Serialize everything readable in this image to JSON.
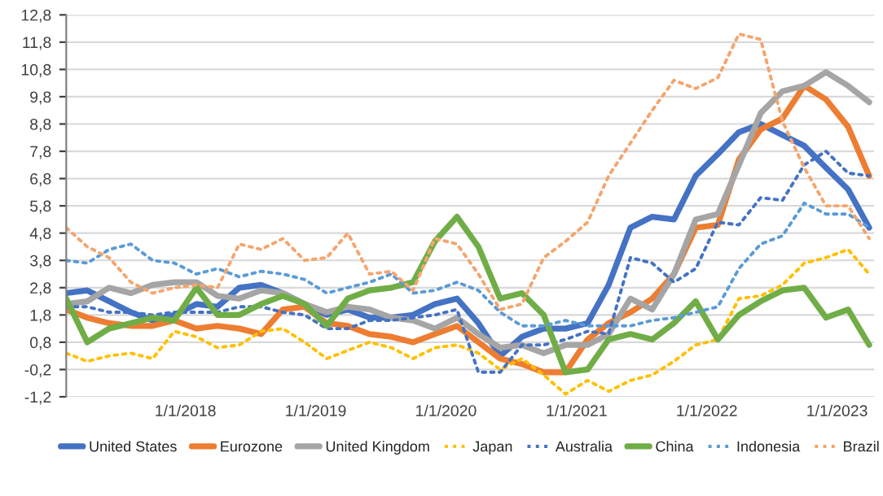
{
  "chart_data": {
    "type": "line",
    "x": [
      "2017-02",
      "2017-04",
      "2017-06",
      "2017-08",
      "2017-10",
      "2017-12",
      "2018-02",
      "2018-04",
      "2018-06",
      "2018-08",
      "2018-10",
      "2018-12",
      "2019-02",
      "2019-04",
      "2019-06",
      "2019-08",
      "2019-10",
      "2019-12",
      "2020-02",
      "2020-04",
      "2020-06",
      "2020-08",
      "2020-10",
      "2020-12",
      "2021-02",
      "2021-04",
      "2021-06",
      "2021-08",
      "2021-10",
      "2021-12",
      "2022-02",
      "2022-04",
      "2022-06",
      "2022-08",
      "2022-10",
      "2022-12",
      "2023-02",
      "2023-04"
    ],
    "series": [
      {
        "name": "United States",
        "color": "#4472c4",
        "line_style": "solid",
        "values": [
          2.6,
          2.7,
          2.3,
          1.9,
          1.6,
          1.8,
          2.2,
          2.1,
          2.8,
          2.9,
          2.6,
          2.2,
          1.8,
          2.0,
          1.7,
          1.7,
          1.8,
          2.2,
          2.4,
          1.5,
          0.3,
          1.0,
          1.3,
          1.3,
          1.5,
          2.9,
          5.0,
          5.4,
          5.3,
          6.9,
          7.7,
          8.5,
          8.8,
          8.4,
          8.0,
          7.2,
          6.4,
          5.0
        ]
      },
      {
        "name": "Eurozone",
        "color": "#ed7d31",
        "line_style": "solid",
        "values": [
          2.0,
          1.7,
          1.5,
          1.4,
          1.4,
          1.6,
          1.3,
          1.4,
          1.3,
          1.1,
          2.0,
          2.1,
          1.5,
          1.4,
          1.1,
          1.0,
          0.8,
          1.1,
          1.4,
          0.8,
          0.2,
          0.0,
          -0.3,
          -0.3,
          0.9,
          1.5,
          1.9,
          2.4,
          3.3,
          5.0,
          5.1,
          7.5,
          8.6,
          9.0,
          10.2,
          9.7,
          8.7,
          6.9
        ]
      },
      {
        "name": "United Kingdom",
        "color": "#a5a5a5",
        "line_style": "solid",
        "values": [
          2.2,
          2.3,
          2.8,
          2.6,
          2.9,
          3.0,
          3.0,
          2.5,
          2.4,
          2.7,
          2.6,
          2.2,
          1.9,
          2.1,
          2.0,
          1.7,
          1.6,
          1.3,
          1.7,
          1.1,
          0.6,
          0.7,
          0.4,
          0.7,
          0.7,
          1.1,
          2.4,
          2.0,
          3.3,
          5.3,
          5.5,
          7.3,
          9.2,
          10.0,
          10.2,
          10.7,
          10.2,
          9.6
        ]
      },
      {
        "name": "Japan",
        "color": "#ffc000",
        "line_style": "dotted",
        "values": [
          0.4,
          0.1,
          0.3,
          0.4,
          0.2,
          1.2,
          1.0,
          0.6,
          0.7,
          1.2,
          1.3,
          0.8,
          0.2,
          0.5,
          0.8,
          0.6,
          0.2,
          0.6,
          0.7,
          0.4,
          -0.2,
          0.2,
          -0.4,
          -1.1,
          -0.6,
          -1.0,
          -0.6,
          -0.4,
          0.1,
          0.7,
          0.9,
          2.4,
          2.5,
          2.9,
          3.7,
          3.9,
          4.2,
          3.3
        ]
      },
      {
        "name": "Australia",
        "color": "#4472c4",
        "line_style": "dotted",
        "values": [
          2.1,
          2.1,
          1.9,
          1.9,
          1.8,
          1.9,
          1.9,
          1.9,
          2.1,
          2.1,
          1.9,
          1.8,
          1.3,
          1.3,
          1.6,
          1.6,
          1.7,
          1.8,
          2.0,
          -0.3,
          -0.3,
          0.7,
          0.7,
          0.9,
          1.2,
          1.1,
          3.9,
          3.7,
          3.0,
          3.5,
          5.2,
          5.1,
          6.1,
          6.0,
          7.3,
          7.8,
          7.0,
          6.9
        ]
      },
      {
        "name": "China",
        "color": "#70ad47",
        "line_style": "solid",
        "values": [
          2.4,
          0.8,
          1.3,
          1.5,
          1.7,
          1.6,
          2.8,
          1.8,
          1.8,
          2.2,
          2.5,
          2.2,
          1.4,
          2.4,
          2.7,
          2.8,
          3.0,
          4.5,
          5.4,
          4.3,
          2.4,
          2.6,
          1.8,
          -0.3,
          -0.2,
          0.9,
          1.1,
          0.9,
          1.5,
          2.3,
          0.9,
          1.8,
          2.3,
          2.7,
          2.8,
          1.7,
          2.0,
          0.7
        ]
      },
      {
        "name": "Indonesia",
        "color": "#5b9bd5",
        "line_style": "dotted",
        "values": [
          3.8,
          3.7,
          4.2,
          4.4,
          3.8,
          3.7,
          3.3,
          3.5,
          3.2,
          3.4,
          3.3,
          3.1,
          2.6,
          2.8,
          3.0,
          3.3,
          2.6,
          2.7,
          3.0,
          2.7,
          1.9,
          1.4,
          1.4,
          1.6,
          1.4,
          1.4,
          1.4,
          1.6,
          1.7,
          1.9,
          2.1,
          3.5,
          4.4,
          4.7,
          5.9,
          5.5,
          5.5,
          5.0
        ]
      },
      {
        "name": "Brazil",
        "color": "#f4a56e",
        "line_style": "dotted",
        "values": [
          5.0,
          4.3,
          3.9,
          3.0,
          2.6,
          2.8,
          2.9,
          2.8,
          4.4,
          4.2,
          4.6,
          3.8,
          3.9,
          4.8,
          3.3,
          3.4,
          2.7,
          4.6,
          4.4,
          3.3,
          2.0,
          2.2,
          3.9,
          4.5,
          5.2,
          6.9,
          8.1,
          9.3,
          10.4,
          10.1,
          10.5,
          12.1,
          11.9,
          8.9,
          7.2,
          5.8,
          5.8,
          4.6
        ]
      }
    ],
    "xlim": [
      "2017-02-01",
      "2023-04-15"
    ],
    "xticks": [
      {
        "value": "2018-01-01",
        "label": "1/1/2018"
      },
      {
        "value": "2019-01-01",
        "label": "1/1/2019"
      },
      {
        "value": "2020-01-01",
        "label": "1/1/2020"
      },
      {
        "value": "2021-01-01",
        "label": "1/1/2021"
      },
      {
        "value": "2022-01-01",
        "label": "1/1/2022"
      },
      {
        "value": "2023-01-01",
        "label": "1/1/2023"
      }
    ],
    "ylim": [
      -1.2,
      12.8
    ],
    "yticks": [
      {
        "value": -1.2,
        "label": "-1,2"
      },
      {
        "value": -0.2,
        "label": "-0,2"
      },
      {
        "value": 0.8,
        "label": "0,8"
      },
      {
        "value": 1.8,
        "label": "1,8"
      },
      {
        "value": 2.8,
        "label": "2,8"
      },
      {
        "value": 3.8,
        "label": "3,8"
      },
      {
        "value": 4.8,
        "label": "4,8"
      },
      {
        "value": 5.8,
        "label": "5,8"
      },
      {
        "value": 6.8,
        "label": "6,8"
      },
      {
        "value": 7.8,
        "label": "7,8"
      },
      {
        "value": 8.8,
        "label": "8,8"
      },
      {
        "value": 9.8,
        "label": "9,8"
      },
      {
        "value": 10.8,
        "label": "10,8"
      },
      {
        "value": 11.8,
        "label": "11,8"
      },
      {
        "value": 12.8,
        "label": "12,8"
      }
    ],
    "grid": "y",
    "legend": "bottom"
  }
}
